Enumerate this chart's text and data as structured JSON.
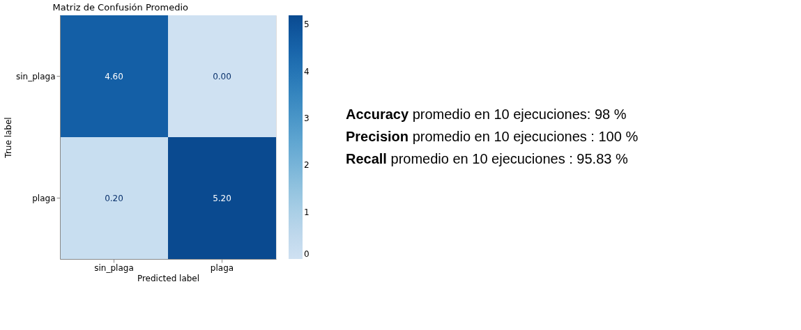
{
  "chart_data": {
    "type": "heatmap",
    "title": "Matriz de Confusión Promedio",
    "xlabel": "Predicted label",
    "ylabel": "True label",
    "categories": [
      "sin_plaga",
      "plaga"
    ],
    "y_categories": [
      "sin_plaga",
      "plaga"
    ],
    "cells": [
      [
        4.6,
        0.0
      ],
      [
        0.2,
        5.2
      ]
    ],
    "cell_labels": [
      [
        "4.60",
        "0.00"
      ],
      [
        "0.20",
        "5.20"
      ]
    ],
    "clim": [
      0,
      5.2
    ],
    "cticks": [
      0,
      1,
      2,
      3,
      4,
      5
    ],
    "annotations": [
      "Accuracy promedio en 10 ejecuciones: 98 %",
      "Precision promedio en 10 ejecuciones : 100 %",
      "Recall promedio en 10 ejecuciones : 95.83 %"
    ]
  }
}
